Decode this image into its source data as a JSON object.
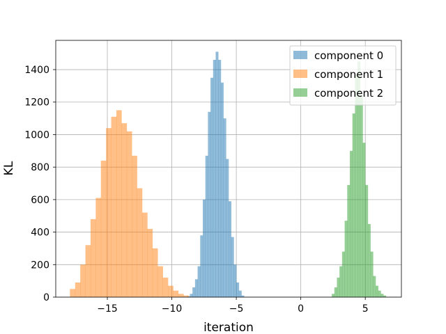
{
  "chart_data": {
    "type": "histogram",
    "title": "",
    "xlabel": "iteration",
    "ylabel": "KL",
    "xlim": [
      -19,
      7.8
    ],
    "ylim": [
      0,
      1580
    ],
    "xticks": [
      -15,
      -10,
      -5,
      0,
      5
    ],
    "xtick_labels": [
      "−15",
      "−10",
      "−5",
      "0",
      "5"
    ],
    "yticks": [
      0,
      200,
      400,
      600,
      800,
      1000,
      1200,
      1400
    ],
    "ytick_labels": [
      "0",
      "200",
      "400",
      "600",
      "800",
      "1000",
      "1200",
      "1400"
    ],
    "grid": true,
    "legend_position": "upper right",
    "series": [
      {
        "name": "component 0",
        "color": "#1f77b4",
        "alpha": 0.5,
        "bin_edges": [
          -8.8,
          -8.6,
          -8.4,
          -8.2,
          -8.0,
          -7.8,
          -7.6,
          -7.4,
          -7.2,
          -7.0,
          -6.8,
          -6.6,
          -6.4,
          -6.2,
          -6.0,
          -5.8,
          -5.6,
          -5.4,
          -5.2,
          -5.0,
          -4.8,
          -4.6,
          -4.4
        ],
        "counts": [
          5,
          20,
          60,
          110,
          190,
          380,
          600,
          870,
          1140,
          1350,
          1460,
          1510,
          1460,
          1320,
          1100,
          850,
          590,
          370,
          200,
          90,
          40,
          10
        ]
      },
      {
        "name": "component 1",
        "color": "#ff7f0e",
        "alpha": 0.5,
        "bin_edges": [
          -17.9,
          -17.5,
          -17.1,
          -16.7,
          -16.3,
          -15.9,
          -15.5,
          -15.1,
          -14.7,
          -14.3,
          -13.9,
          -13.5,
          -13.1,
          -12.7,
          -12.3,
          -11.9,
          -11.5,
          -11.1,
          -10.7,
          -10.3,
          -9.9,
          -9.5,
          -9.1,
          -8.7
        ],
        "counts": [
          50,
          90,
          200,
          320,
          480,
          610,
          840,
          1040,
          1110,
          1150,
          1070,
          1020,
          870,
          670,
          520,
          420,
          300,
          190,
          120,
          70,
          40,
          20,
          10
        ]
      },
      {
        "name": "component 2",
        "color": "#2ca02c",
        "alpha": 0.5,
        "bin_edges": [
          2.4,
          2.6,
          2.8,
          3.0,
          3.2,
          3.4,
          3.6,
          3.8,
          4.0,
          4.2,
          4.4,
          4.6,
          4.8,
          5.0,
          5.2,
          5.4,
          5.6,
          5.8,
          6.0,
          6.2,
          6.4,
          6.6
        ],
        "counts": [
          20,
          60,
          120,
          190,
          280,
          470,
          690,
          900,
          1130,
          1370,
          1450,
          1240,
          950,
          690,
          450,
          280,
          130,
          70,
          40,
          20,
          10
        ]
      }
    ]
  }
}
